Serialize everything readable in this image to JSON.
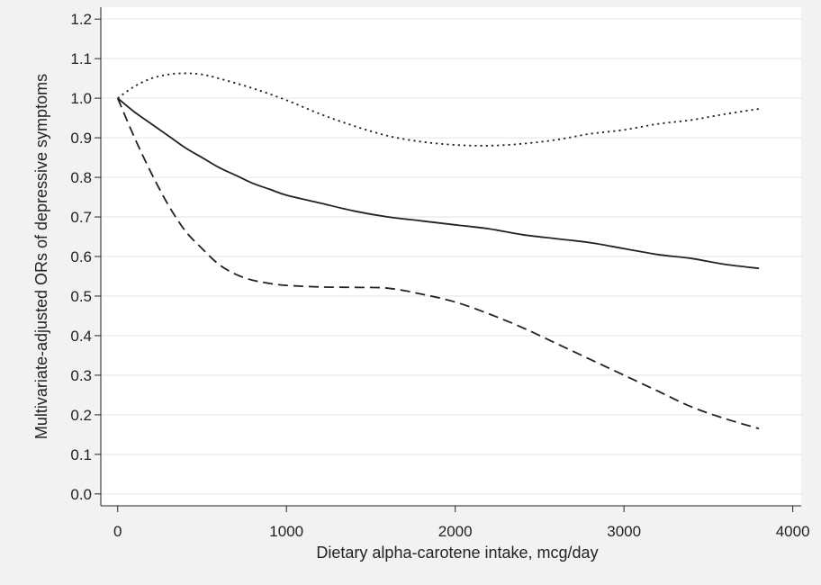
{
  "chart_data": {
    "type": "line",
    "title": "",
    "xlabel": "Dietary alpha-carotene intake, mcg/day",
    "ylabel": "Multivariate-adjusted ORs of depressive symptoms",
    "xlim": [
      -100,
      4050
    ],
    "ylim": [
      -0.03,
      1.23
    ],
    "x_ticks": [
      "0",
      "1000",
      "2000",
      "3000",
      "4000"
    ],
    "y_ticks": [
      "0.0",
      "0.1",
      "0.2",
      "0.3",
      "0.4",
      "0.5",
      "0.6",
      "0.7",
      "0.8",
      "0.9",
      "1.0",
      "1.1",
      "1.2"
    ],
    "grid": "horizontal",
    "legend": "none",
    "series": [
      {
        "style": "solid",
        "color": "#222222",
        "points": [
          [
            0,
            1.0
          ],
          [
            100,
            0.965
          ],
          [
            200,
            0.935
          ],
          [
            300,
            0.905
          ],
          [
            400,
            0.875
          ],
          [
            500,
            0.85
          ],
          [
            600,
            0.825
          ],
          [
            700,
            0.805
          ],
          [
            800,
            0.785
          ],
          [
            900,
            0.77
          ],
          [
            1000,
            0.755
          ],
          [
            1200,
            0.735
          ],
          [
            1400,
            0.715
          ],
          [
            1600,
            0.7
          ],
          [
            1800,
            0.69
          ],
          [
            2000,
            0.68
          ],
          [
            2200,
            0.67
          ],
          [
            2400,
            0.655
          ],
          [
            2600,
            0.645
          ],
          [
            2800,
            0.635
          ],
          [
            3000,
            0.62
          ],
          [
            3200,
            0.605
          ],
          [
            3400,
            0.595
          ],
          [
            3600,
            0.58
          ],
          [
            3800,
            0.57
          ]
        ]
      },
      {
        "style": "dotted",
        "color": "#222222",
        "points": [
          [
            0,
            1.0
          ],
          [
            100,
            1.03
          ],
          [
            200,
            1.05
          ],
          [
            300,
            1.06
          ],
          [
            400,
            1.063
          ],
          [
            500,
            1.06
          ],
          [
            600,
            1.05
          ],
          [
            800,
            1.025
          ],
          [
            1000,
            0.995
          ],
          [
            1200,
            0.96
          ],
          [
            1400,
            0.93
          ],
          [
            1600,
            0.905
          ],
          [
            1800,
            0.89
          ],
          [
            2000,
            0.882
          ],
          [
            2200,
            0.88
          ],
          [
            2400,
            0.885
          ],
          [
            2600,
            0.895
          ],
          [
            2800,
            0.91
          ],
          [
            3000,
            0.92
          ],
          [
            3200,
            0.935
          ],
          [
            3400,
            0.945
          ],
          [
            3600,
            0.96
          ],
          [
            3800,
            0.973
          ]
        ]
      },
      {
        "style": "dashed",
        "color": "#222222",
        "points": [
          [
            0,
            1.0
          ],
          [
            100,
            0.9
          ],
          [
            200,
            0.81
          ],
          [
            300,
            0.73
          ],
          [
            400,
            0.665
          ],
          [
            500,
            0.62
          ],
          [
            600,
            0.58
          ],
          [
            700,
            0.555
          ],
          [
            800,
            0.54
          ],
          [
            900,
            0.532
          ],
          [
            1000,
            0.527
          ],
          [
            1200,
            0.523
          ],
          [
            1400,
            0.522
          ],
          [
            1600,
            0.52
          ],
          [
            1800,
            0.505
          ],
          [
            2000,
            0.485
          ],
          [
            2200,
            0.455
          ],
          [
            2400,
            0.42
          ],
          [
            2600,
            0.38
          ],
          [
            2800,
            0.34
          ],
          [
            3000,
            0.3
          ],
          [
            3200,
            0.26
          ],
          [
            3400,
            0.22
          ],
          [
            3600,
            0.19
          ],
          [
            3800,
            0.165
          ]
        ]
      }
    ]
  }
}
